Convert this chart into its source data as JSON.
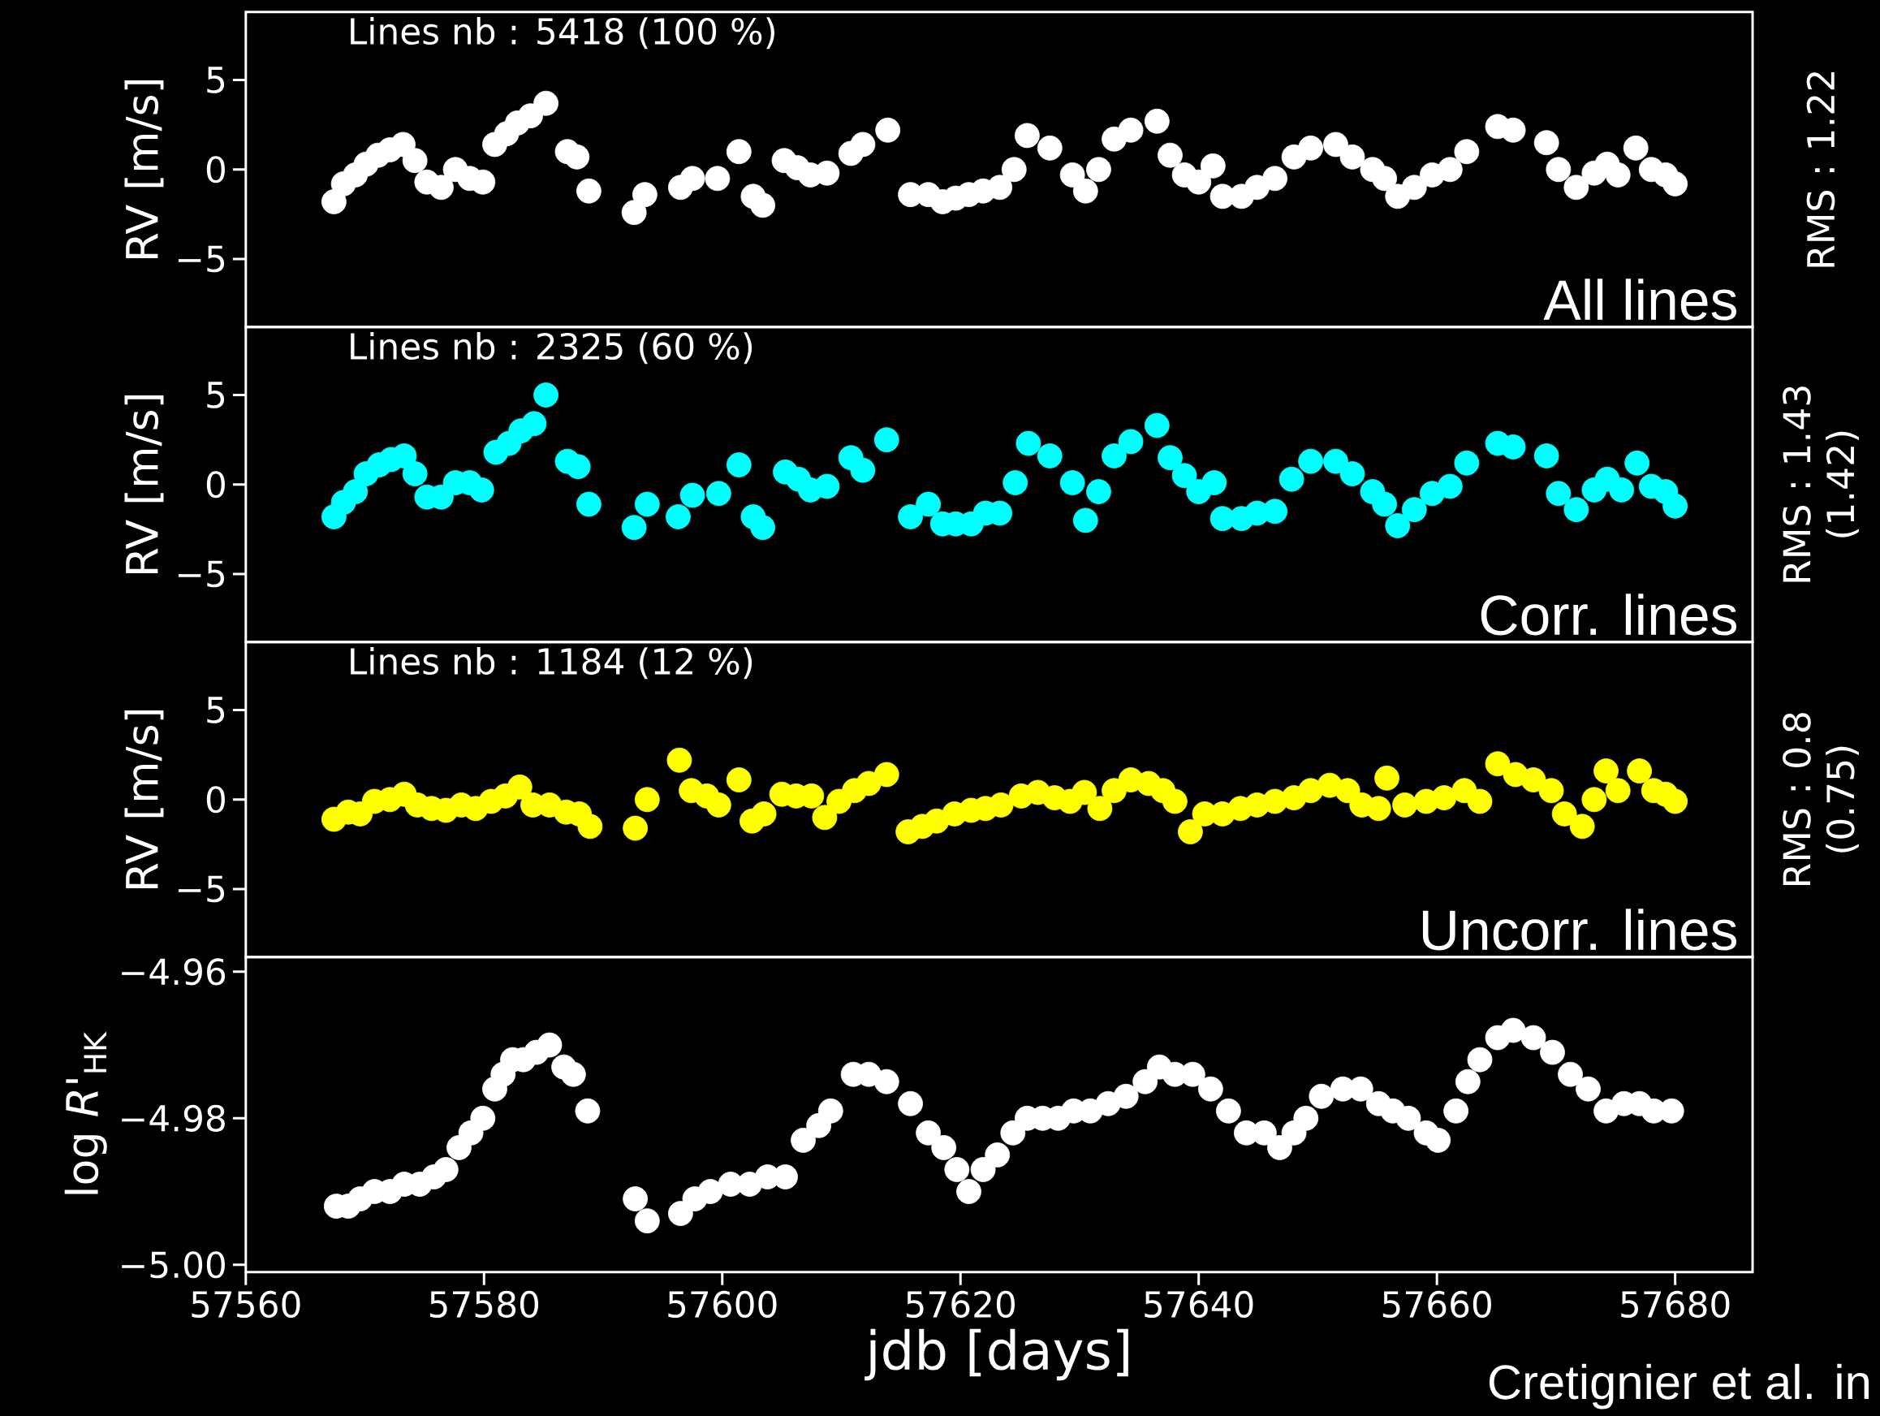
{
  "chart_data": [
    {
      "type": "scatter",
      "ylabel": "RV [m/s]",
      "y2label": "RMS : 1.22",
      "annotations": [
        "Lines nb : 5418 (100 %)",
        "All lines"
      ],
      "xlim": [
        57560,
        57686.5
      ],
      "ylim": [
        -8.8,
        8.8
      ],
      "yticks": [
        {
          "value": -5,
          "label": "−5"
        },
        0,
        5
      ],
      "tick_labels": "y",
      "marker": "circle",
      "series": [
        {
          "color": "#ffffff",
          "x": [
            57567.4,
            57568.2,
            57569.2,
            57570.1,
            57571.1,
            57572.1,
            57573.2,
            57574.2,
            57575.2,
            57576.4,
            57577.6,
            57578.8,
            57579.9,
            57580.9,
            57581.9,
            57582.8,
            57583.9,
            57585.2,
            57587.0,
            57587.8,
            57588.8,
            57592.6,
            57593.5,
            57596.5,
            57597.5,
            57599.6,
            57601.4,
            57602.6,
            57603.4,
            57605.2,
            57606.3,
            57607.4,
            57608.8,
            57610.8,
            57611.8,
            57613.9,
            57615.8,
            57617.3,
            57618.5,
            57619.6,
            57620.7,
            57621.9,
            57623.3,
            57624.5,
            57625.6,
            57627.5,
            57629.4,
            57630.5,
            57631.6,
            57632.9,
            57634.3,
            57636.5,
            57637.6,
            57638.8,
            57640.0,
            57641.2,
            57642.0,
            57643.6,
            57644.9,
            57646.4,
            57648.0,
            57649.4,
            57651.5,
            57652.9,
            57654.6,
            57655.6,
            57656.7,
            57658.1,
            57659.6,
            57661.1,
            57662.5,
            57665.1,
            57666.4,
            57669.2,
            57670.2,
            57671.7,
            57673.2,
            57674.3,
            57675.2,
            57676.7,
            57678.0,
            57679.2,
            57680.0
          ],
          "values": [
            -1.8,
            -0.8,
            -0.3,
            0.3,
            0.8,
            1.1,
            1.4,
            0.5,
            -0.7,
            -1.0,
            0.0,
            -0.5,
            -0.7,
            1.4,
            2.0,
            2.6,
            3.0,
            3.7,
            1.0,
            0.7,
            -1.2,
            -2.4,
            -1.4,
            -1.0,
            -0.5,
            -0.5,
            1.0,
            -1.5,
            -2.0,
            0.5,
            0.1,
            -0.3,
            -0.2,
            0.9,
            1.4,
            2.2,
            -1.4,
            -1.4,
            -1.8,
            -1.6,
            -1.4,
            -1.2,
            -1.0,
            0.0,
            1.9,
            1.2,
            -0.3,
            -1.2,
            0.0,
            1.7,
            2.2,
            2.7,
            0.8,
            -0.3,
            -0.7,
            0.2,
            -1.5,
            -1.5,
            -1.0,
            -0.5,
            0.7,
            1.2,
            1.4,
            0.7,
            0.0,
            -0.5,
            -1.5,
            -1.0,
            -0.3,
            0.0,
            1.0,
            2.4,
            2.2,
            1.5,
            0.0,
            -1.0,
            -0.2,
            0.3,
            -0.3,
            1.2,
            0.0,
            -0.3,
            -0.8
          ]
        }
      ]
    },
    {
      "type": "scatter",
      "ylabel": "RV [m/s]",
      "y2label": "RMS : 1.43 (1.42)",
      "annotations": [
        "Lines nb : 2325 (60 %)",
        "Corr. lines"
      ],
      "xlim": [
        57560,
        57686.5
      ],
      "ylim": [
        -8.8,
        8.8
      ],
      "yticks": [
        {
          "value": -5,
          "label": "−5"
        },
        0,
        5
      ],
      "tick_labels": "y",
      "marker": "circle",
      "series": [
        {
          "color": "#00ffff",
          "x": [
            57567.4,
            57568.2,
            57569.2,
            57570.1,
            57571.2,
            57572.2,
            57573.3,
            57574.2,
            57575.2,
            57576.4,
            57577.6,
            57578.8,
            57579.8,
            57581.0,
            57582.1,
            57583.1,
            57584.2,
            57585.2,
            57587.0,
            57587.9,
            57588.8,
            57592.6,
            57593.7,
            57596.3,
            57597.5,
            57599.7,
            57601.4,
            57602.6,
            57603.4,
            57605.3,
            57606.4,
            57607.4,
            57608.8,
            57610.8,
            57611.8,
            57613.8,
            57615.8,
            57617.3,
            57618.5,
            57619.6,
            57620.9,
            57622.1,
            57623.3,
            57624.6,
            57625.7,
            57627.5,
            57629.4,
            57630.5,
            57631.6,
            57632.9,
            57634.3,
            57636.5,
            57637.6,
            57638.8,
            57640.0,
            57641.3,
            57642.0,
            57643.6,
            57644.9,
            57646.4,
            57647.8,
            57649.4,
            57651.5,
            57652.9,
            57654.6,
            57655.6,
            57656.7,
            57658.1,
            57659.6,
            57661.1,
            57662.5,
            57665.1,
            57666.4,
            57669.2,
            57670.2,
            57671.7,
            57673.2,
            57674.3,
            57675.5,
            57676.8,
            57678.0,
            57679.2,
            57680.0
          ],
          "values": [
            -1.8,
            -1.0,
            -0.4,
            0.6,
            1.1,
            1.4,
            1.6,
            0.6,
            -0.7,
            -0.7,
            0.1,
            0.1,
            -0.3,
            1.8,
            2.3,
            3.0,
            3.4,
            5.0,
            1.3,
            1.0,
            -1.1,
            -2.4,
            -1.1,
            -1.8,
            -0.6,
            -0.5,
            1.1,
            -1.8,
            -2.4,
            0.7,
            0.3,
            -0.3,
            -0.1,
            1.5,
            0.8,
            2.5,
            -1.8,
            -1.1,
            -2.2,
            -2.2,
            -2.2,
            -1.6,
            -1.6,
            0.1,
            2.3,
            1.6,
            0.1,
            -2.0,
            -0.4,
            1.6,
            2.4,
            3.3,
            1.5,
            0.5,
            -0.4,
            0.1,
            -1.9,
            -1.9,
            -1.6,
            -1.5,
            0.3,
            1.3,
            1.3,
            0.6,
            -0.4,
            -1.1,
            -2.3,
            -1.4,
            -0.5,
            -0.1,
            1.2,
            2.3,
            2.1,
            1.6,
            -0.5,
            -1.4,
            -0.3,
            0.3,
            -0.3,
            1.2,
            -0.1,
            -0.4,
            -1.2
          ]
        }
      ]
    },
    {
      "type": "scatter",
      "ylabel": "RV [m/s]",
      "y2label": "RMS : 0.8 (0.75)",
      "annotations": [
        "Lines nb : 1184 (12 %)",
        "Uncorr. lines"
      ],
      "xlim": [
        57560,
        57686.5
      ],
      "ylim": [
        -8.8,
        8.8
      ],
      "yticks": [
        {
          "value": -5,
          "label": "−5"
        },
        0,
        5
      ],
      "tick_labels": "y",
      "marker": "circle",
      "series": [
        {
          "color": "#ffff00",
          "x": [
            57567.4,
            57568.6,
            57569.6,
            57570.8,
            57572.1,
            57573.3,
            57574.4,
            57575.6,
            57576.8,
            57578.1,
            57579.3,
            57580.6,
            57581.8,
            57583.0,
            57584.1,
            57585.5,
            57586.9,
            57588.0,
            57588.9,
            57592.7,
            57593.7,
            57596.4,
            57597.4,
            57598.7,
            57599.7,
            57601.4,
            57602.5,
            57603.5,
            57605.0,
            57606.2,
            57607.5,
            57608.6,
            57609.8,
            57611.1,
            57612.3,
            57613.8,
            57615.6,
            57616.8,
            57618.0,
            57619.5,
            57620.9,
            57622.1,
            57623.4,
            57625.1,
            57626.5,
            57627.9,
            57629.2,
            57630.4,
            57631.7,
            57632.9,
            57634.3,
            57635.8,
            57637.0,
            57638.0,
            57639.3,
            57640.5,
            57642.0,
            57643.5,
            57644.9,
            57646.4,
            57648.0,
            57649.4,
            57651.0,
            57652.5,
            57653.7,
            57655.1,
            57655.8,
            57657.3,
            57659.1,
            57660.6,
            57662.3,
            57663.6,
            57665.1,
            57666.6,
            57668.1,
            57669.6,
            57670.7,
            57672.2,
            57673.2,
            57674.2,
            57675.2,
            57677.0,
            57678.2,
            57679.2,
            57680.0
          ],
          "values": [
            -1.1,
            -0.7,
            -0.8,
            -0.1,
            0.0,
            0.3,
            -0.3,
            -0.5,
            -0.6,
            -0.3,
            -0.5,
            -0.1,
            0.2,
            0.7,
            -0.3,
            -0.3,
            -0.7,
            -0.8,
            -1.5,
            -1.6,
            0.0,
            2.2,
            0.5,
            0.2,
            -0.3,
            1.1,
            -1.2,
            -0.8,
            0.3,
            0.2,
            0.2,
            -1.0,
            -0.1,
            0.5,
            0.9,
            1.4,
            -1.8,
            -1.5,
            -1.2,
            -0.8,
            -0.6,
            -0.5,
            -0.3,
            0.2,
            0.4,
            0.1,
            -0.1,
            0.4,
            -0.5,
            0.5,
            1.1,
            0.9,
            0.5,
            -0.1,
            -1.8,
            -0.8,
            -0.8,
            -0.5,
            -0.3,
            -0.1,
            0.1,
            0.5,
            0.8,
            0.5,
            -0.3,
            -0.5,
            1.2,
            -0.3,
            -0.1,
            0.1,
            0.5,
            -0.1,
            2.0,
            1.4,
            1.1,
            0.5,
            -0.8,
            -1.5,
            0.0,
            1.6,
            0.5,
            1.6,
            0.5,
            0.3,
            -0.1
          ]
        }
      ]
    },
    {
      "type": "scatter",
      "ylabel": "log *R'*$_{HK}$",
      "xlabel": "jdb [days]",
      "annotations": [
        "Cretignier et al. in"
      ],
      "xlim": [
        57560,
        57686.5
      ],
      "ylim": [
        -5.001,
        -4.958
      ],
      "xticks": [
        57560,
        57580,
        57600,
        57620,
        57640,
        57660,
        57680
      ],
      "yticks": [
        {
          "value": -5.0,
          "label": "−5.00"
        },
        {
          "value": -4.98,
          "label": "−4.98"
        },
        {
          "value": -4.96,
          "label": "−4.96"
        }
      ],
      "marker": "circle",
      "series": [
        {
          "color": "#ffffff",
          "x": [
            57567.6,
            57568.6,
            57569.6,
            57570.8,
            57572.1,
            57573.3,
            57574.6,
            57575.8,
            57576.8,
            57577.9,
            57578.9,
            57579.9,
            57580.9,
            57581.6,
            57582.4,
            57583.3,
            57584.4,
            57585.5,
            57586.7,
            57587.5,
            57588.7,
            57592.7,
            57593.7,
            57596.5,
            57597.7,
            57599.0,
            57600.7,
            57602.3,
            57603.8,
            57605.3,
            57606.8,
            57608.1,
            57609.1,
            57611.0,
            57612.3,
            57613.8,
            57615.8,
            57617.3,
            57618.6,
            57619.7,
            57620.7,
            57621.9,
            57623.1,
            57624.4,
            57625.6,
            57626.9,
            57628.2,
            57629.5,
            57630.9,
            57632.4,
            57633.9,
            57635.5,
            57636.7,
            57638.0,
            57639.5,
            57641.0,
            57642.5,
            57644.0,
            57645.5,
            57646.8,
            57648.0,
            57649.0,
            57650.3,
            57652.1,
            57653.6,
            57655.1,
            57656.3,
            57657.6,
            57659.1,
            57660.1,
            57661.6,
            57662.6,
            57663.6,
            57665.1,
            57666.4,
            57668.1,
            57669.7,
            57671.2,
            57672.7,
            57674.2,
            57675.7,
            57677.0,
            57678.2,
            57679.7
          ],
          "values": [
            -4.992,
            -4.992,
            -4.991,
            -4.99,
            -4.99,
            -4.989,
            -4.989,
            -4.988,
            -4.987,
            -4.984,
            -4.982,
            -4.98,
            -4.976,
            -4.974,
            -4.972,
            -4.972,
            -4.971,
            -4.97,
            -4.973,
            -4.974,
            -4.979,
            -4.991,
            -4.994,
            -4.993,
            -4.991,
            -4.99,
            -4.989,
            -4.989,
            -4.988,
            -4.988,
            -4.983,
            -4.981,
            -4.979,
            -4.974,
            -4.974,
            -4.975,
            -4.978,
            -4.982,
            -4.984,
            -4.987,
            -4.99,
            -4.987,
            -4.985,
            -4.982,
            -4.98,
            -4.98,
            -4.98,
            -4.979,
            -4.979,
            -4.978,
            -4.977,
            -4.975,
            -4.973,
            -4.974,
            -4.974,
            -4.976,
            -4.979,
            -4.982,
            -4.982,
            -4.984,
            -4.982,
            -4.98,
            -4.977,
            -4.976,
            -4.976,
            -4.978,
            -4.979,
            -4.98,
            -4.982,
            -4.983,
            -4.979,
            -4.975,
            -4.972,
            -4.969,
            -4.968,
            -4.969,
            -4.971,
            -4.974,
            -4.976,
            -4.979,
            -4.978,
            -4.978,
            -4.979,
            -4.979
          ]
        }
      ]
    }
  ]
}
